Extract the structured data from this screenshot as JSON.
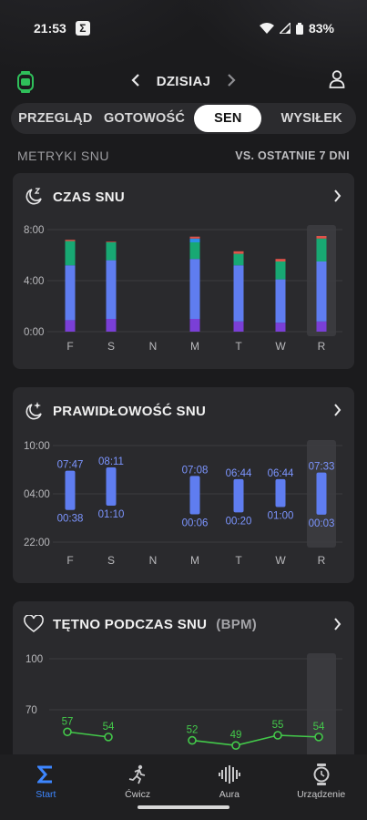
{
  "status_bar": {
    "time": "21:53",
    "app_glyph": "Σ",
    "battery": "83%"
  },
  "header": {
    "date_label": "DZISIAJ",
    "icons": [
      "watch-icon",
      "user-icon"
    ]
  },
  "tabs": [
    {
      "label": "PRZEGLĄD",
      "active": false
    },
    {
      "label": "GOTOWOŚĆ",
      "active": false
    },
    {
      "label": "SEN",
      "active": true
    },
    {
      "label": "WYSIŁEK",
      "active": false
    }
  ],
  "section": {
    "title": "METRYKI SNU",
    "compare": "VS. OSTATNIE 7 DNI"
  },
  "colors": {
    "deep": "#7a3fd6",
    "light": "#5f7df0",
    "rem": "#18a873",
    "awake": "#e0524a",
    "awake2": "#2b8fe8",
    "hr_line": "#43c94a"
  },
  "sleep_time": {
    "title": "CZAS SNU",
    "chart_data": {
      "type": "bar",
      "stacked": true,
      "categories": [
        "F",
        "S",
        "N",
        "M",
        "T",
        "W",
        "R"
      ],
      "y_ticks": [
        "8:00",
        "4:00",
        "0:00"
      ],
      "ylim_hours": [
        0,
        8
      ],
      "series": [],
      "stacks_hours": [
        {
          "deep": 0.9,
          "light": 4.3,
          "rem": 1.9,
          "awake": 0.1,
          "awake2": 0
        },
        {
          "deep": 1.0,
          "light": 4.6,
          "rem": 1.4,
          "awake": 0.05,
          "awake2": 0
        },
        {
          "deep": 0,
          "light": 0,
          "rem": 0,
          "awake": 0,
          "awake2": 0
        },
        {
          "deep": 1.0,
          "light": 4.7,
          "rem": 1.3,
          "awake": 0.15,
          "awake2": 0.3
        },
        {
          "deep": 0.8,
          "light": 4.4,
          "rem": 0.9,
          "awake": 0.2,
          "awake2": 0
        },
        {
          "deep": 0.7,
          "light": 3.4,
          "rem": 1.4,
          "awake": 0.2,
          "awake2": 0
        },
        {
          "deep": 0.8,
          "light": 4.7,
          "rem": 1.8,
          "awake": 0.2,
          "awake2": 0
        }
      ],
      "highlight_index": 6
    }
  },
  "sleep_regularity": {
    "title": "PRAWIDŁOWOŚĆ SNU",
    "chart_data": {
      "type": "bar",
      "range_bars": true,
      "categories": [
        "F",
        "S",
        "N",
        "M",
        "T",
        "W",
        "R"
      ],
      "y_ticks": [
        "10:00",
        "04:00",
        "22:00"
      ],
      "bars": [
        {
          "start": "00:38",
          "end": "07:47"
        },
        {
          "start": "01:10",
          "end": "08:11"
        },
        null,
        {
          "start": "00:06",
          "end": "07:08"
        },
        {
          "start": "00:20",
          "end": "06:44"
        },
        {
          "start": "01:00",
          "end": "06:44"
        },
        {
          "start": "00:03",
          "end": "07:33"
        }
      ],
      "highlight_index": 6
    }
  },
  "sleep_hr": {
    "title": "TĘTNO PODCZAS SNU",
    "unit": "(BPM)",
    "chart_data": {
      "type": "line",
      "categories": [
        "F",
        "S",
        "N",
        "M",
        "T",
        "W",
        "R"
      ],
      "y_ticks": [
        "100",
        "70"
      ],
      "ylim": [
        40,
        100
      ],
      "values": [
        57,
        54,
        null,
        52,
        49,
        55,
        54
      ],
      "highlight_index": 6
    }
  },
  "bottom_nav": [
    {
      "label": "Start",
      "icon": "sigma-icon",
      "active": true
    },
    {
      "label": "Ćwicz",
      "icon": "runner-icon",
      "active": false
    },
    {
      "label": "Aura",
      "icon": "aura-icon",
      "active": false
    },
    {
      "label": "Urządzenie",
      "icon": "watch-icon",
      "active": false
    }
  ]
}
